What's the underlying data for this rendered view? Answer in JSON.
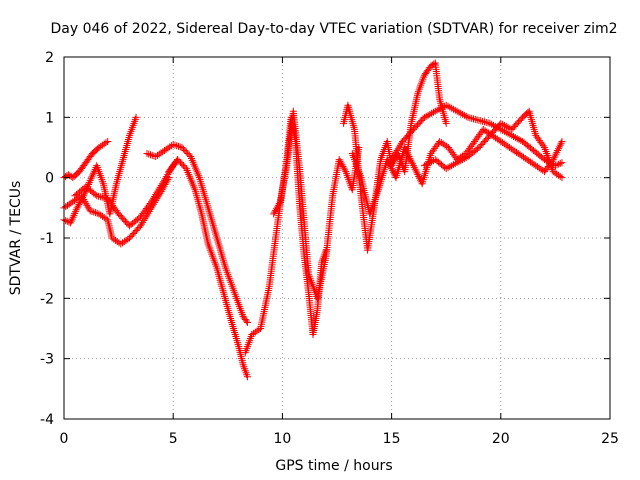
{
  "chart_data": {
    "type": "scatter",
    "title": "Day 046 of 2022, Sidereal Day-to-day VTEC variation (SDTVAR) for receiver zim2",
    "xlabel": "GPS time / hours",
    "ylabel": "SDTVAR / TECUs",
    "xlim": [
      0,
      25
    ],
    "ylim": [
      -4,
      2
    ],
    "xticks": [
      0,
      5,
      10,
      15,
      20,
      25
    ],
    "yticks": [
      -4,
      -3,
      -2,
      -1,
      0,
      1,
      2
    ],
    "grid": true,
    "marker": "+",
    "color": "#ff0000",
    "series": [
      {
        "x": [
          0.0,
          0.2,
          0.4,
          0.7,
          1.0,
          1.3,
          1.6,
          2.0
        ],
        "y": [
          0.0,
          0.05,
          0.0,
          0.1,
          0.25,
          0.4,
          0.5,
          0.6
        ]
      },
      {
        "x": [
          0.0,
          0.3,
          0.6,
          0.9,
          1.2,
          1.5,
          1.8,
          2.1,
          2.4,
          2.7,
          3.0,
          3.3
        ],
        "y": [
          -0.7,
          -0.75,
          -0.5,
          -0.3,
          -0.05,
          0.2,
          -0.1,
          -0.6,
          -0.1,
          0.3,
          0.7,
          1.0
        ]
      },
      {
        "x": [
          0.0,
          0.4,
          0.8,
          1.2,
          1.6,
          2.0,
          2.2,
          2.6,
          3.0,
          3.5,
          4.0,
          4.5,
          4.8
        ],
        "y": [
          -0.5,
          -0.4,
          -0.3,
          -0.55,
          -0.6,
          -0.7,
          -1.0,
          -1.1,
          -1.0,
          -0.8,
          -0.5,
          -0.2,
          0.0
        ]
      },
      {
        "x": [
          0.5,
          1.0,
          1.5,
          2.0,
          2.5,
          3.0,
          3.5,
          4.0,
          4.5,
          5.0,
          5.2
        ],
        "y": [
          -0.3,
          -0.15,
          -0.3,
          -0.35,
          -0.6,
          -0.8,
          -0.65,
          -0.4,
          -0.1,
          0.2,
          0.3
        ]
      },
      {
        "x": [
          3.8,
          4.2,
          4.6,
          5.0,
          5.4,
          5.8,
          6.2,
          6.6,
          7.0,
          7.4,
          7.8,
          8.0,
          8.2,
          8.4
        ],
        "y": [
          0.4,
          0.35,
          0.45,
          0.55,
          0.5,
          0.35,
          0.0,
          -0.5,
          -1.0,
          -1.5,
          -1.9,
          -2.1,
          -2.3,
          -2.4
        ]
      },
      {
        "x": [
          4.8,
          5.2,
          5.6,
          6.0,
          6.3,
          6.6,
          7.0,
          7.3,
          7.6,
          8.0,
          8.2,
          8.4
        ],
        "y": [
          0.1,
          0.3,
          0.15,
          -0.2,
          -0.6,
          -1.1,
          -1.5,
          -1.9,
          -2.3,
          -2.8,
          -3.1,
          -3.3
        ]
      },
      {
        "x": [
          8.3,
          8.6,
          9.0,
          9.4,
          9.8,
          10.2,
          10.4,
          10.6,
          10.8,
          11.0,
          11.2,
          11.4,
          11.6,
          11.8,
          12.0
        ],
        "y": [
          -2.9,
          -2.6,
          -2.5,
          -1.8,
          -0.7,
          0.3,
          1.0,
          0.6,
          -0.5,
          -1.3,
          -1.9,
          -2.6,
          -2.2,
          -1.4,
          -1.2
        ]
      },
      {
        "x": [
          9.6,
          9.9,
          10.2,
          10.5,
          10.8,
          11.2,
          11.6,
          12.0,
          12.3,
          12.6,
          12.9,
          13.2,
          13.5
        ],
        "y": [
          -0.6,
          -0.4,
          0.2,
          1.1,
          0.1,
          -1.6,
          -2.0,
          -1.3,
          -0.3,
          0.3,
          0.1,
          -0.2,
          0.5
        ]
      },
      {
        "x": [
          12.8,
          13.0,
          13.3,
          13.6,
          13.9,
          14.2,
          14.5,
          14.8,
          15.0,
          15.3,
          15.6,
          15.9,
          16.2,
          16.5,
          16.8,
          17.0,
          17.2,
          17.5
        ],
        "y": [
          0.9,
          1.2,
          0.8,
          -0.3,
          -1.2,
          -0.5,
          0.3,
          0.6,
          0.2,
          0.4,
          0.1,
          0.9,
          1.4,
          1.7,
          1.85,
          1.9,
          1.3,
          0.9
        ]
      },
      {
        "x": [
          13.2,
          13.6,
          14.0,
          14.4,
          14.8,
          15.2,
          15.6,
          16.0,
          16.4,
          16.8,
          17.2,
          17.6,
          18.0,
          18.4,
          18.8,
          19.2,
          19.6,
          20.0,
          20.4,
          20.8,
          21.2,
          21.6,
          22.0,
          22.4,
          22.8
        ],
        "y": [
          0.4,
          0.0,
          -0.6,
          -0.2,
          0.3,
          0.0,
          0.5,
          0.2,
          -0.1,
          0.4,
          0.6,
          0.5,
          0.3,
          0.4,
          0.6,
          0.8,
          0.7,
          0.6,
          0.5,
          0.4,
          0.3,
          0.2,
          0.1,
          0.3,
          0.6
        ]
      },
      {
        "x": [
          15.0,
          15.5,
          16.0,
          16.5,
          17.0,
          17.5,
          18.0,
          18.5,
          19.0,
          19.5,
          20.0,
          20.5,
          21.0,
          21.5,
          22.0,
          22.5,
          22.8
        ],
        "y": [
          0.3,
          0.6,
          0.8,
          1.0,
          1.1,
          1.2,
          1.1,
          1.0,
          0.95,
          0.9,
          0.8,
          0.7,
          0.6,
          0.45,
          0.3,
          0.2,
          0.25
        ]
      },
      {
        "x": [
          16.5,
          17.0,
          17.5,
          18.0,
          18.5,
          19.0,
          19.5,
          20.0,
          20.5,
          21.0,
          21.3,
          21.6,
          22.0,
          22.4,
          22.8
        ],
        "y": [
          0.2,
          0.3,
          0.15,
          0.25,
          0.35,
          0.5,
          0.7,
          0.9,
          0.8,
          1.0,
          1.1,
          0.7,
          0.5,
          0.1,
          0.0
        ]
      }
    ]
  }
}
